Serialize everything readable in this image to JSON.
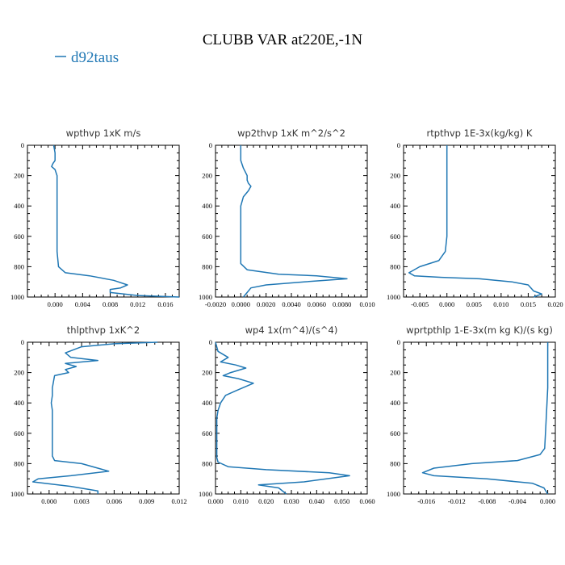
{
  "figure": {
    "title": "CLUBB VAR at220E,-1N",
    "legend": [
      "d92taus"
    ],
    "line_color": "#1f77b4"
  },
  "chart_data": [
    {
      "type": "line",
      "title": "wpthvp   1xK m/s",
      "xlim": [
        -0.004,
        0.018
      ],
      "ylim": [
        1000,
        0
      ],
      "xticks": [
        "0.000",
        "0.004",
        "0.008",
        "0.012",
        "0.016"
      ],
      "xtick_values": [
        0,
        0.004,
        0.008,
        0.012,
        0.016
      ],
      "yticks": [
        "0",
        "200",
        "400",
        "600",
        "800",
        "1000"
      ],
      "series": [
        {
          "name": "d92taus",
          "x": [
            -0.0002,
            0,
            0,
            -0.0003,
            -0.0005,
            0,
            0.0003,
            0.0003,
            0.0003,
            0.0003,
            0.0003,
            0.0003,
            0.0005,
            0.0015,
            0.005,
            0.0085,
            0.0105,
            0.0095,
            0.008,
            0.008,
            0.012,
            0.018
          ],
          "y": [
            0,
            50,
            100,
            120,
            140,
            160,
            200,
            300,
            400,
            500,
            600,
            700,
            800,
            840,
            860,
            890,
            920,
            940,
            950,
            970,
            990,
            1000
          ]
        }
      ]
    },
    {
      "type": "line",
      "title": "wp2thvp   1xK m^2/s^2",
      "xlim": [
        -0.002,
        0.01
      ],
      "ylim": [
        1000,
        0
      ],
      "xticks": [
        "-0.0020",
        "0.0000",
        "0.0020",
        "0.0040",
        "0.0060",
        "0.0080",
        "0.010"
      ],
      "xtick_values": [
        -0.002,
        0,
        0.002,
        0.004,
        0.006,
        0.008,
        0.01
      ],
      "yticks": [
        "0",
        "200",
        "400",
        "600",
        "800",
        "1000"
      ],
      "series": [
        {
          "name": "d92taus",
          "x": [
            0.0,
            0.0,
            0.0,
            0.0002,
            0.0005,
            0.0005,
            0.0006,
            0.0008,
            0.0006,
            0.0002,
            0.0,
            0.0,
            0.0,
            0.0,
            0.0,
            0.0005,
            0.003,
            0.006,
            0.0084,
            0.005,
            0.002,
            0.0008,
            0.0005,
            0.0002
          ],
          "y": [
            0,
            50,
            100,
            150,
            200,
            230,
            250,
            270,
            300,
            340,
            400,
            500,
            600,
            700,
            780,
            820,
            850,
            860,
            880,
            900,
            920,
            940,
            970,
            1000
          ]
        }
      ]
    },
    {
      "type": "line",
      "title": "rtpthvp   1E-3x(kg/kg) K",
      "xlim": [
        -0.008,
        0.02
      ],
      "ylim": [
        1000,
        0
      ],
      "xticks": [
        "-0.005",
        "0.000",
        "0.005",
        "0.010",
        "0.015",
        "0.020"
      ],
      "xtick_values": [
        -0.005,
        0,
        0.005,
        0.01,
        0.015,
        0.02
      ],
      "yticks": [
        "0",
        "200",
        "400",
        "600",
        "800",
        "1000"
      ],
      "series": [
        {
          "name": "d92taus",
          "x": [
            0.0,
            0.0,
            0.0,
            0.0,
            0.0,
            0.0,
            0.0,
            -0.0003,
            -0.0015,
            -0.005,
            -0.007,
            -0.006,
            -0.001,
            0.006,
            0.012,
            0.015,
            0.016,
            0.0175,
            0.016
          ],
          "y": [
            0,
            100,
            200,
            300,
            400,
            500,
            600,
            700,
            760,
            800,
            840,
            860,
            870,
            880,
            900,
            920,
            960,
            980,
            1000
          ]
        }
      ]
    },
    {
      "type": "line",
      "title": "thlpthvp   1xK^2",
      "xlim": [
        -0.002,
        0.012
      ],
      "ylim": [
        1000,
        0
      ],
      "xticks": [
        "0.000",
        "0.003",
        "0.006",
        "0.009",
        "0.012"
      ],
      "xtick_values": [
        0,
        0.003,
        0.006,
        0.009,
        0.012
      ],
      "yticks": [
        "0",
        "200",
        "400",
        "600",
        "800",
        "1000"
      ],
      "series": [
        {
          "name": "d92taus",
          "x": [
            0.01,
            0.006,
            0.003,
            0.0015,
            0.002,
            0.0045,
            0.0015,
            0.0025,
            0.0015,
            0.0018,
            0.0005,
            0.0003,
            0.0003,
            0.0002,
            0.0003,
            0.0003,
            0.0003,
            0.0003,
            0.0003,
            0.0005,
            0.003,
            0.0055,
            0.002,
            -0.001,
            -0.0015,
            0.002,
            0.0045,
            0.0045
          ],
          "y": [
            0,
            10,
            30,
            70,
            100,
            120,
            140,
            160,
            180,
            200,
            220,
            300,
            350,
            400,
            450,
            500,
            600,
            700,
            750,
            780,
            800,
            850,
            880,
            900,
            920,
            950,
            980,
            1000
          ]
        }
      ]
    },
    {
      "type": "line",
      "title": "wp4   1x(m^4)/(s^4)",
      "xlim": [
        0,
        0.06
      ],
      "ylim": [
        1000,
        0
      ],
      "xticks": [
        "0.000",
        "0.010",
        "0.020",
        "0.030",
        "0.040",
        "0.050",
        "0.060"
      ],
      "xtick_values": [
        0,
        0.01,
        0.02,
        0.03,
        0.04,
        0.05,
        0.06
      ],
      "yticks": [
        "0",
        "200",
        "400",
        "600",
        "800",
        "1000"
      ],
      "series": [
        {
          "name": "d92taus",
          "x": [
            0.0,
            0.001,
            0.005,
            0.002,
            0.008,
            0.012,
            0.006,
            0.003,
            0.009,
            0.015,
            0.008,
            0.004,
            0.002,
            0.001,
            0.0005,
            0.0005,
            0.0005,
            0.0005,
            0.001,
            0.005,
            0.02,
            0.045,
            0.053,
            0.035,
            0.017,
            0.025,
            0.028
          ],
          "y": [
            0,
            60,
            100,
            130,
            150,
            170,
            200,
            220,
            240,
            270,
            320,
            350,
            400,
            450,
            500,
            600,
            700,
            760,
            790,
            820,
            840,
            860,
            880,
            920,
            940,
            960,
            1000
          ]
        }
      ]
    },
    {
      "type": "line",
      "title": "wprtpthlp   1-E-3x(m kg K)/(s kg)",
      "xlim": [
        -0.019,
        0.001
      ],
      "ylim": [
        1000,
        0
      ],
      "xticks": [
        "-0.016",
        "-0.012",
        "-0.008",
        "-0.004",
        "0.000"
      ],
      "xtick_values": [
        -0.016,
        -0.012,
        -0.008,
        -0.004,
        0
      ],
      "yticks": [
        "0",
        "200",
        "400",
        "600",
        "800",
        "1000"
      ],
      "series": [
        {
          "name": "d92taus",
          "x": [
            0.0,
            0.0,
            0.0,
            0.0,
            -0.0001,
            -0.0003,
            -0.0004,
            -0.001,
            -0.004,
            -0.01,
            -0.015,
            -0.0165,
            -0.015,
            -0.008,
            -0.002,
            -0.0005,
            0.0
          ],
          "y": [
            0,
            100,
            200,
            300,
            400,
            600,
            700,
            740,
            780,
            800,
            830,
            860,
            880,
            900,
            930,
            960,
            1000
          ]
        }
      ]
    }
  ]
}
